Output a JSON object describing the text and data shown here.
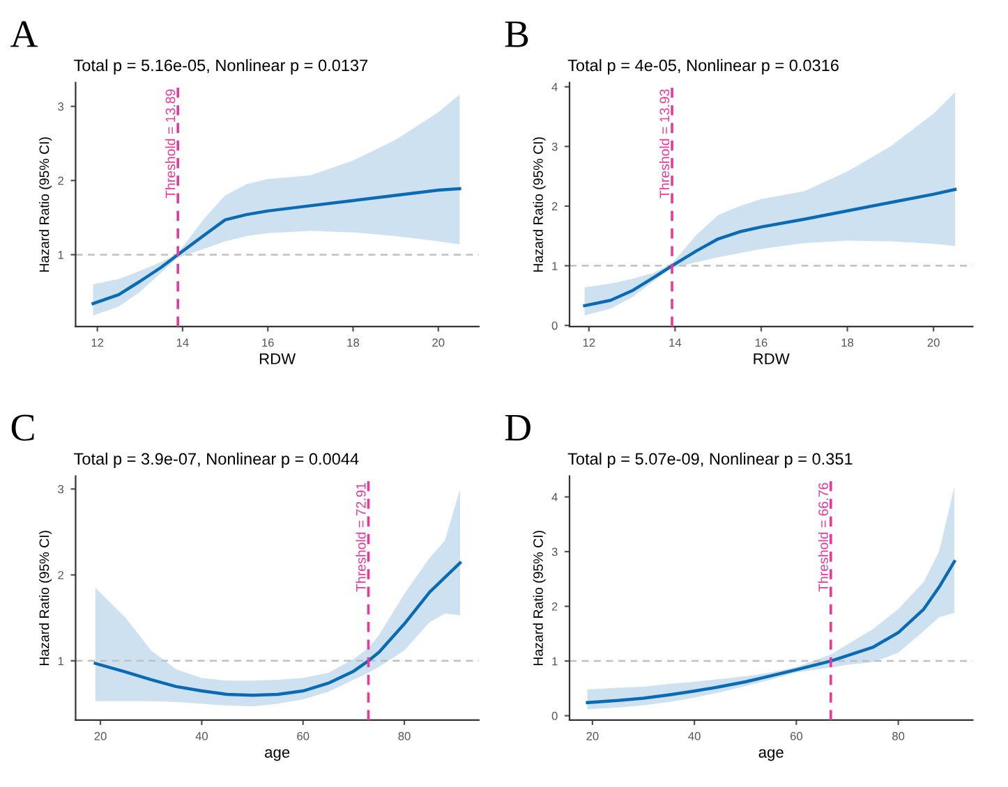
{
  "chart_data": [
    {
      "type": "line",
      "title": "A",
      "subtitle": "Total p = 5.16e-05, Nonlinear p = 0.0137",
      "xlabel": "RDW",
      "ylabel": "Hazard Ratio (95% CI)",
      "xlim": [
        11.49,
        20.95
      ],
      "ylim": [
        0.03,
        3.32
      ],
      "xticks": [
        12,
        14,
        16,
        18,
        20
      ],
      "yticks": [
        1,
        2,
        3
      ],
      "grid": false,
      "legend": false,
      "line_style": "solid",
      "series": [
        {
          "color": "#0a6bb5",
          "x": [
            11.9,
            12.5,
            13,
            13.5,
            13.89,
            14.5,
            15,
            15.5,
            16,
            17,
            18,
            19,
            20,
            20.5
          ],
          "values": [
            0.34,
            0.46,
            0.64,
            0.83,
            1,
            1.26,
            1.47,
            1.54,
            1.59,
            1.66,
            1.73,
            1.8,
            1.87,
            1.89
          ],
          "lower": [
            0.18,
            0.3,
            0.5,
            0.76,
            0.96,
            1.08,
            1.18,
            1.25,
            1.29,
            1.32,
            1.3,
            1.25,
            1.18,
            1.14
          ],
          "upper": [
            0.6,
            0.67,
            0.78,
            0.9,
            1.02,
            1.48,
            1.8,
            1.95,
            2.02,
            2.07,
            2.27,
            2.55,
            2.92,
            3.16
          ]
        }
      ],
      "ref_lines": [
        {
          "axis": "x",
          "value": 13.89,
          "label": "Threshold = 13.89",
          "color": "#e8399a",
          "line_style": "dashed"
        },
        {
          "axis": "y",
          "value": 1,
          "color": "#c0c0c0",
          "line_style": "dashed"
        }
      ]
    },
    {
      "type": "line",
      "title": "B",
      "subtitle": "Total p = 4e-05, Nonlinear p = 0.0316",
      "xlabel": "RDW",
      "ylabel": "Hazard Ratio (95% CI)",
      "xlim": [
        11.55,
        20.91
      ],
      "ylim": [
        -0.02,
        4.07
      ],
      "xticks": [
        12,
        14,
        16,
        18,
        20
      ],
      "yticks": [
        0,
        1,
        2,
        3,
        4
      ],
      "grid": false,
      "legend": false,
      "line_style": "solid",
      "series": [
        {
          "color": "#0a6bb5",
          "x": [
            11.9,
            12.5,
            13,
            13.5,
            13.93,
            14.5,
            15,
            15.5,
            16,
            17,
            18,
            19,
            20,
            20.5
          ],
          "values": [
            0.33,
            0.42,
            0.58,
            0.8,
            1,
            1.25,
            1.45,
            1.57,
            1.65,
            1.78,
            1.92,
            2.06,
            2.2,
            2.28
          ],
          "lower": [
            0.17,
            0.28,
            0.47,
            0.74,
            0.96,
            1.06,
            1.14,
            1.21,
            1.28,
            1.38,
            1.42,
            1.41,
            1.37,
            1.33
          ],
          "upper": [
            0.64,
            0.7,
            0.78,
            0.88,
            1.04,
            1.52,
            1.85,
            2.0,
            2.12,
            2.25,
            2.58,
            3.0,
            3.55,
            3.91
          ]
        }
      ],
      "ref_lines": [
        {
          "axis": "x",
          "value": 13.93,
          "label": "Threshold = 13.93",
          "color": "#e8399a",
          "line_style": "dashed"
        },
        {
          "axis": "y",
          "value": 1,
          "color": "#c0c0c0",
          "line_style": "dashed"
        }
      ]
    },
    {
      "type": "line",
      "title": "C",
      "subtitle": "Total p = 3.9e-07, Nonlinear p = 0.0044",
      "xlabel": "age",
      "ylabel": "Hazard Ratio (95% CI)",
      "xlim": [
        15.1,
        94.7
      ],
      "ylim": [
        0.31,
        3.15
      ],
      "xticks": [
        20,
        40,
        60,
        80
      ],
      "yticks": [
        1,
        2,
        3
      ],
      "grid": false,
      "legend": false,
      "line_style": "solid",
      "series": [
        {
          "color": "#0a6bb5",
          "x": [
            19,
            25,
            30,
            35,
            40,
            45,
            50,
            55,
            60,
            65,
            70,
            72.91,
            75,
            80,
            85,
            88,
            91
          ],
          "values": [
            0.97,
            0.87,
            0.78,
            0.7,
            0.65,
            0.61,
            0.6,
            0.61,
            0.65,
            0.74,
            0.88,
            1.0,
            1.1,
            1.43,
            1.8,
            1.97,
            2.14
          ],
          "lower": [
            0.53,
            0.53,
            0.53,
            0.52,
            0.5,
            0.48,
            0.47,
            0.5,
            0.55,
            0.64,
            0.78,
            0.86,
            0.93,
            1.12,
            1.45,
            1.55,
            1.53
          ],
          "upper": [
            1.85,
            1.5,
            1.12,
            0.9,
            0.8,
            0.77,
            0.77,
            0.78,
            0.8,
            0.86,
            1.02,
            1.15,
            1.3,
            1.78,
            2.2,
            2.4,
            3.0
          ]
        }
      ],
      "ref_lines": [
        {
          "axis": "x",
          "value": 72.91,
          "label": "Threshold = 72.91",
          "color": "#e8399a",
          "line_style": "dashed"
        },
        {
          "axis": "y",
          "value": 1,
          "color": "#c0c0c0",
          "line_style": "dashed"
        }
      ]
    },
    {
      "type": "line",
      "title": "D",
      "subtitle": "Total p = 5.07e-09, Nonlinear p = 0.351",
      "xlabel": "age",
      "ylabel": "Hazard Ratio (95% CI)",
      "xlim": [
        15.5,
        94.6
      ],
      "ylim": [
        -0.08,
        4.38
      ],
      "xticks": [
        20,
        40,
        60,
        80
      ],
      "yticks": [
        0,
        1,
        2,
        3,
        4
      ],
      "grid": false,
      "legend": false,
      "line_style": "solid",
      "series": [
        {
          "color": "#0a6bb5",
          "x": [
            19,
            25,
            30,
            35,
            40,
            45,
            50,
            55,
            60,
            66.76,
            70,
            75,
            80,
            85,
            88,
            91
          ],
          "values": [
            0.24,
            0.28,
            0.32,
            0.38,
            0.45,
            0.53,
            0.62,
            0.73,
            0.84,
            1.0,
            1.1,
            1.25,
            1.52,
            1.95,
            2.35,
            2.82
          ],
          "lower": [
            0.12,
            0.15,
            0.19,
            0.25,
            0.33,
            0.43,
            0.54,
            0.66,
            0.79,
            0.88,
            0.93,
            0.98,
            1.15,
            1.55,
            1.8,
            1.88
          ],
          "upper": [
            0.48,
            0.51,
            0.53,
            0.58,
            0.62,
            0.67,
            0.72,
            0.79,
            0.89,
            1.12,
            1.3,
            1.58,
            1.95,
            2.45,
            3.0,
            4.18
          ]
        }
      ],
      "ref_lines": [
        {
          "axis": "x",
          "value": 66.76,
          "label": "Threshold = 66.76",
          "color": "#e8399a",
          "line_style": "dashed"
        },
        {
          "axis": "y",
          "value": 1,
          "color": "#c0c0c0",
          "line_style": "dashed"
        }
      ]
    }
  ]
}
